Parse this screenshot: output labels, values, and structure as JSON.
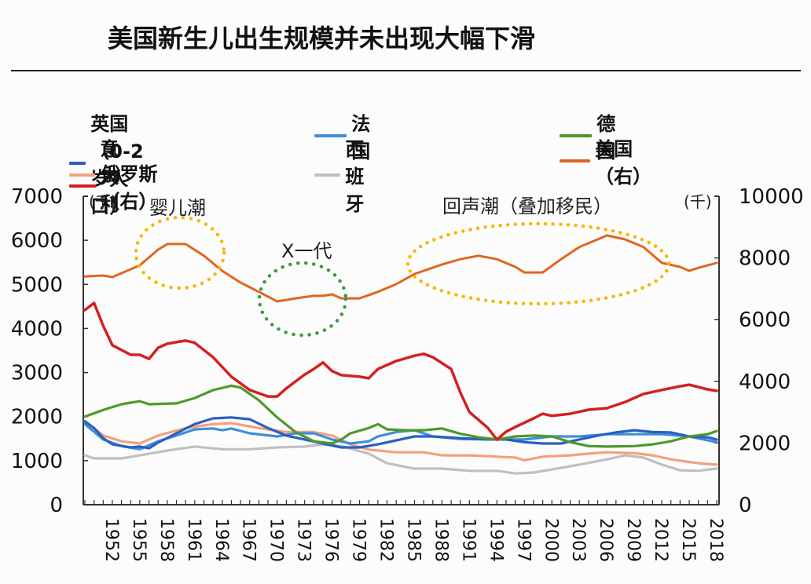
{
  "title": "美国新生儿出生规模并未出现大幅下滑",
  "chart_data": {
    "type": "line",
    "title": "美国新生儿出生规模并未出现大幅下滑",
    "xlabel": "",
    "ylabel_left": "(千)",
    "ylabel_right": "(千)",
    "ylim_left": [
      0,
      7000
    ],
    "ylim_right": [
      0,
      10000
    ],
    "yticks_left": [
      "0",
      "1000",
      "2000",
      "3000",
      "4000",
      "5000",
      "6000",
      "7000"
    ],
    "yticks_right": [
      "0",
      "2000",
      "4000",
      "6000",
      "8000",
      "10000"
    ],
    "xlim": [
      1949,
      2018
    ],
    "xtick_labels": [
      "1952",
      "1955",
      "1958",
      "1961",
      "1964",
      "1967",
      "1970",
      "1973",
      "1976",
      "1979",
      "1982",
      "1985",
      "1988",
      "1991",
      "1994",
      "1997",
      "2000",
      "2003",
      "2006",
      "2009",
      "2012",
      "2015",
      "2018"
    ],
    "grid": false,
    "legend_position": "top",
    "series": [
      {
        "name": "英国（0-2岁人口）",
        "axis": "left",
        "color": "#2b5fbf",
        "points": [
          [
            1949,
            1890
          ],
          [
            1950,
            1740
          ],
          [
            1951,
            1510
          ],
          [
            1952,
            1370
          ],
          [
            1954,
            1300
          ],
          [
            1955,
            1320
          ],
          [
            1956,
            1280
          ],
          [
            1957,
            1410
          ],
          [
            1959,
            1620
          ],
          [
            1961,
            1830
          ],
          [
            1963,
            1960
          ],
          [
            1965,
            1980
          ],
          [
            1967,
            1940
          ],
          [
            1969,
            1740
          ],
          [
            1971,
            1570
          ],
          [
            1973,
            1480
          ],
          [
            1975,
            1390
          ],
          [
            1977,
            1300
          ],
          [
            1979,
            1300
          ],
          [
            1981,
            1370
          ],
          [
            1983,
            1460
          ],
          [
            1985,
            1550
          ],
          [
            1987,
            1550
          ],
          [
            1990,
            1510
          ],
          [
            1993,
            1480
          ],
          [
            1995,
            1480
          ],
          [
            1997,
            1420
          ],
          [
            1999,
            1390
          ],
          [
            2001,
            1390
          ],
          [
            2003,
            1480
          ],
          [
            2005,
            1570
          ],
          [
            2007,
            1640
          ],
          [
            2009,
            1690
          ],
          [
            2011,
            1650
          ],
          [
            2013,
            1640
          ],
          [
            2015,
            1550
          ],
          [
            2017,
            1530
          ],
          [
            2018,
            1480
          ]
        ]
      },
      {
        "name": "法国",
        "axis": "left",
        "color": "#3d8fd8",
        "points": [
          [
            1949,
            1830
          ],
          [
            1951,
            1480
          ],
          [
            1953,
            1330
          ],
          [
            1955,
            1260
          ],
          [
            1957,
            1440
          ],
          [
            1959,
            1570
          ],
          [
            1961,
            1710
          ],
          [
            1963,
            1730
          ],
          [
            1964,
            1690
          ],
          [
            1965,
            1730
          ],
          [
            1967,
            1620
          ],
          [
            1970,
            1550
          ],
          [
            1972,
            1620
          ],
          [
            1974,
            1620
          ],
          [
            1976,
            1480
          ],
          [
            1978,
            1390
          ],
          [
            1980,
            1440
          ],
          [
            1981,
            1550
          ],
          [
            1983,
            1650
          ],
          [
            1985,
            1690
          ],
          [
            1987,
            1550
          ],
          [
            1990,
            1490
          ],
          [
            1994,
            1480
          ],
          [
            1997,
            1480
          ],
          [
            2000,
            1550
          ],
          [
            2003,
            1550
          ],
          [
            2006,
            1600
          ],
          [
            2009,
            1600
          ],
          [
            2012,
            1600
          ],
          [
            2015,
            1550
          ],
          [
            2018,
            1420
          ]
        ]
      },
      {
        "name": "德国",
        "axis": "left",
        "color": "#4c9a2a",
        "points": [
          [
            1949,
            2000
          ],
          [
            1951,
            2150
          ],
          [
            1953,
            2280
          ],
          [
            1955,
            2350
          ],
          [
            1956,
            2280
          ],
          [
            1959,
            2300
          ],
          [
            1961,
            2420
          ],
          [
            1963,
            2600
          ],
          [
            1965,
            2700
          ],
          [
            1966,
            2660
          ],
          [
            1968,
            2370
          ],
          [
            1970,
            1980
          ],
          [
            1972,
            1650
          ],
          [
            1974,
            1440
          ],
          [
            1976,
            1390
          ],
          [
            1977,
            1480
          ],
          [
            1978,
            1620
          ],
          [
            1980,
            1740
          ],
          [
            1981,
            1830
          ],
          [
            1982,
            1710
          ],
          [
            1984,
            1690
          ],
          [
            1986,
            1690
          ],
          [
            1988,
            1730
          ],
          [
            1990,
            1610
          ],
          [
            1992,
            1530
          ],
          [
            1994,
            1480
          ],
          [
            1996,
            1550
          ],
          [
            1998,
            1570
          ],
          [
            2000,
            1550
          ],
          [
            2002,
            1420
          ],
          [
            2004,
            1330
          ],
          [
            2006,
            1320
          ],
          [
            2009,
            1330
          ],
          [
            2011,
            1370
          ],
          [
            2013,
            1440
          ],
          [
            2015,
            1550
          ],
          [
            2017,
            1600
          ],
          [
            2018,
            1670
          ]
        ]
      },
      {
        "name": "意大利",
        "axis": "left",
        "color": "#f4a07a",
        "points": [
          [
            1949,
            1900
          ],
          [
            1951,
            1570
          ],
          [
            1953,
            1440
          ],
          [
            1955,
            1390
          ],
          [
            1957,
            1570
          ],
          [
            1960,
            1740
          ],
          [
            1963,
            1830
          ],
          [
            1965,
            1850
          ],
          [
            1968,
            1740
          ],
          [
            1971,
            1650
          ],
          [
            1974,
            1650
          ],
          [
            1976,
            1570
          ],
          [
            1978,
            1370
          ],
          [
            1980,
            1250
          ],
          [
            1983,
            1190
          ],
          [
            1986,
            1190
          ],
          [
            1988,
            1120
          ],
          [
            1991,
            1120
          ],
          [
            1994,
            1090
          ],
          [
            1996,
            1070
          ],
          [
            1997,
            1010
          ],
          [
            1999,
            1090
          ],
          [
            2002,
            1120
          ],
          [
            2004,
            1160
          ],
          [
            2006,
            1190
          ],
          [
            2009,
            1170
          ],
          [
            2011,
            1120
          ],
          [
            2013,
            1030
          ],
          [
            2016,
            940
          ],
          [
            2018,
            910
          ]
        ]
      },
      {
        "name": "西班牙",
        "axis": "left",
        "color": "#bfbfc4",
        "points": [
          [
            1949,
            1120
          ],
          [
            1950,
            1050
          ],
          [
            1953,
            1050
          ],
          [
            1955,
            1120
          ],
          [
            1958,
            1230
          ],
          [
            1961,
            1320
          ],
          [
            1964,
            1260
          ],
          [
            1967,
            1260
          ],
          [
            1970,
            1300
          ],
          [
            1973,
            1320
          ],
          [
            1975,
            1370
          ],
          [
            1977,
            1330
          ],
          [
            1980,
            1160
          ],
          [
            1982,
            940
          ],
          [
            1985,
            820
          ],
          [
            1988,
            820
          ],
          [
            1991,
            770
          ],
          [
            1994,
            770
          ],
          [
            1996,
            710
          ],
          [
            1998,
            730
          ],
          [
            2000,
            800
          ],
          [
            2003,
            910
          ],
          [
            2006,
            1030
          ],
          [
            2008,
            1120
          ],
          [
            2010,
            1070
          ],
          [
            2012,
            910
          ],
          [
            2014,
            780
          ],
          [
            2016,
            770
          ],
          [
            2018,
            820
          ]
        ]
      },
      {
        "name": "美国（右）",
        "axis": "right",
        "color": "#e0661f",
        "points": [
          [
            1949,
            7400
          ],
          [
            1951,
            7430
          ],
          [
            1952,
            7380
          ],
          [
            1955,
            7760
          ],
          [
            1957,
            8270
          ],
          [
            1958,
            8450
          ],
          [
            1960,
            8450
          ],
          [
            1962,
            8070
          ],
          [
            1964,
            7580
          ],
          [
            1966,
            7200
          ],
          [
            1968,
            6900
          ],
          [
            1970,
            6590
          ],
          [
            1972,
            6690
          ],
          [
            1974,
            6770
          ],
          [
            1975,
            6770
          ],
          [
            1976,
            6820
          ],
          [
            1977,
            6690
          ],
          [
            1979,
            6690
          ],
          [
            1981,
            6900
          ],
          [
            1983,
            7150
          ],
          [
            1985,
            7480
          ],
          [
            1988,
            7790
          ],
          [
            1990,
            7960
          ],
          [
            1992,
            8070
          ],
          [
            1994,
            7960
          ],
          [
            1996,
            7710
          ],
          [
            1997,
            7530
          ],
          [
            1999,
            7530
          ],
          [
            2001,
            7960
          ],
          [
            2003,
            8350
          ],
          [
            2005,
            8600
          ],
          [
            2006,
            8730
          ],
          [
            2008,
            8600
          ],
          [
            2010,
            8350
          ],
          [
            2012,
            7840
          ],
          [
            2014,
            7710
          ],
          [
            2015,
            7580
          ],
          [
            2016,
            7680
          ],
          [
            2018,
            7840
          ]
        ]
      },
      {
        "name": "俄罗斯（右）",
        "axis": "right",
        "color": "#d42020",
        "points": [
          [
            1949,
            6310
          ],
          [
            1950,
            6540
          ],
          [
            1951,
            5800
          ],
          [
            1952,
            5170
          ],
          [
            1954,
            4860
          ],
          [
            1955,
            4860
          ],
          [
            1956,
            4730
          ],
          [
            1957,
            5090
          ],
          [
            1958,
            5220
          ],
          [
            1960,
            5320
          ],
          [
            1961,
            5250
          ],
          [
            1963,
            4780
          ],
          [
            1965,
            4150
          ],
          [
            1967,
            3720
          ],
          [
            1969,
            3510
          ],
          [
            1970,
            3510
          ],
          [
            1971,
            3770
          ],
          [
            1973,
            4220
          ],
          [
            1974,
            4400
          ],
          [
            1975,
            4610
          ],
          [
            1976,
            4330
          ],
          [
            1977,
            4200
          ],
          [
            1979,
            4150
          ],
          [
            1980,
            4100
          ],
          [
            1981,
            4400
          ],
          [
            1983,
            4660
          ],
          [
            1985,
            4830
          ],
          [
            1986,
            4890
          ],
          [
            1987,
            4780
          ],
          [
            1989,
            4400
          ],
          [
            1990,
            3640
          ],
          [
            1991,
            3000
          ],
          [
            1993,
            2490
          ],
          [
            1994,
            2110
          ],
          [
            1995,
            2370
          ],
          [
            1996,
            2520
          ],
          [
            1998,
            2800
          ],
          [
            1999,
            2950
          ],
          [
            2000,
            2880
          ],
          [
            2002,
            2950
          ],
          [
            2004,
            3080
          ],
          [
            2006,
            3130
          ],
          [
            2008,
            3330
          ],
          [
            2010,
            3590
          ],
          [
            2012,
            3720
          ],
          [
            2014,
            3840
          ],
          [
            2015,
            3890
          ],
          [
            2017,
            3740
          ],
          [
            2018,
            3690
          ]
        ]
      }
    ],
    "annotations": [
      {
        "text": "婴儿潮",
        "color": "#f5b800",
        "period": [
          1956,
          1964
        ],
        "shape": "dotted-circle"
      },
      {
        "text": "X一代",
        "color": "#3f9a3f",
        "period": [
          1969,
          1976
        ],
        "shape": "dotted-circle"
      },
      {
        "text": "回声潮（叠加移民）",
        "color": "#f5b800",
        "period": [
          1984,
          2011
        ],
        "shape": "dotted-ellipse"
      }
    ]
  }
}
